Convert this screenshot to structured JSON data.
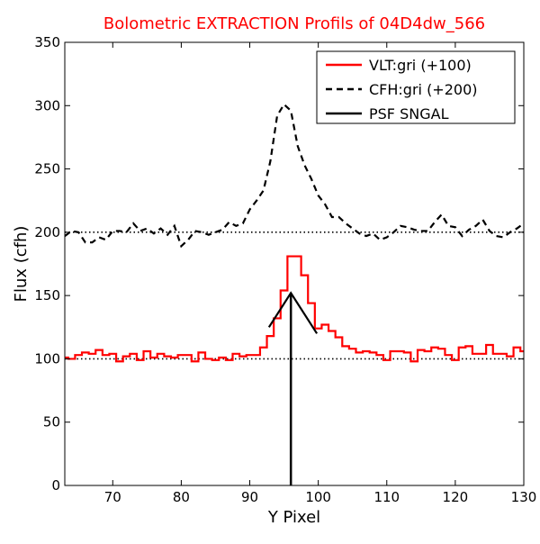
{
  "chart_data": {
    "type": "line",
    "title": "Bolometric EXTRACTION Profils of 04D4dw_566",
    "xlabel": "Y Pixel",
    "ylabel": "Flux (cfh)",
    "xlim": [
      63,
      130
    ],
    "ylim": [
      0,
      350
    ],
    "xticks": [
      70,
      80,
      90,
      100,
      110,
      120,
      130
    ],
    "yticks": [
      0,
      50,
      100,
      150,
      200,
      250,
      300,
      350
    ],
    "grid": false,
    "legend_position": "top-right",
    "reference_lines": [
      100,
      200
    ],
    "series": [
      {
        "name": "VLT:gri (+100)",
        "color": "#ff0000",
        "style": "steps",
        "x": [
          63,
          64,
          65,
          66,
          67,
          68,
          69,
          70,
          71,
          72,
          73,
          74,
          75,
          76,
          77,
          78,
          79,
          80,
          81,
          82,
          83,
          84,
          85,
          86,
          87,
          88,
          89,
          90,
          91,
          92,
          93,
          94,
          95,
          96,
          97,
          98,
          99,
          100,
          101,
          102,
          103,
          104,
          105,
          106,
          107,
          108,
          109,
          110,
          111,
          112,
          113,
          114,
          115,
          116,
          117,
          118,
          119,
          120,
          121,
          122,
          123,
          124,
          125,
          126,
          127,
          128,
          129,
          130
        ],
        "y": [
          101,
          100,
          103,
          105,
          104,
          107,
          103,
          104,
          98,
          102,
          104,
          99,
          106,
          101,
          104,
          102,
          101,
          103,
          103,
          98,
          105,
          100,
          99,
          101,
          99,
          104,
          102,
          103,
          103,
          109,
          118,
          132,
          154,
          181,
          181,
          166,
          144,
          124,
          127,
          122,
          117,
          110,
          108,
          105,
          106,
          105,
          103,
          99,
          106,
          106,
          105,
          98,
          107,
          106,
          109,
          108,
          103,
          99,
          109,
          110,
          104,
          104,
          111,
          104,
          104,
          102,
          109,
          106
        ]
      },
      {
        "name": "CFH:gri (+200)",
        "color": "#000000",
        "style": "dashed",
        "x": [
          63,
          64,
          65,
          66,
          67,
          68,
          69,
          70,
          71,
          72,
          73,
          74,
          75,
          76,
          77,
          78,
          79,
          80,
          81,
          82,
          83,
          84,
          85,
          86,
          87,
          88,
          89,
          90,
          91,
          92,
          93,
          94,
          95,
          96,
          97,
          98,
          99,
          100,
          101,
          102,
          103,
          104,
          105,
          106,
          107,
          108,
          109,
          110,
          111,
          112,
          113,
          114,
          115,
          116,
          117,
          118,
          119,
          120,
          121,
          122,
          123,
          124,
          125,
          126,
          127,
          128,
          129,
          130
        ],
        "y": [
          197,
          201,
          200,
          192,
          192,
          196,
          194,
          201,
          201,
          200,
          207,
          201,
          203,
          199,
          203,
          198,
          205,
          189,
          194,
          201,
          200,
          198,
          200,
          202,
          208,
          205,
          207,
          218,
          225,
          233,
          256,
          292,
          301,
          296,
          268,
          253,
          242,
          229,
          222,
          212,
          212,
          207,
          203,
          199,
          197,
          199,
          194,
          196,
          200,
          205,
          204,
          202,
          201,
          201,
          208,
          214,
          205,
          204,
          197,
          202,
          205,
          210,
          201,
          197,
          196,
          200,
          203,
          207
        ]
      },
      {
        "name": "PSF SNGAL",
        "color": "#000000",
        "style": "solid",
        "x": [
          92.8,
          96,
          99.8
        ],
        "y": [
          125,
          152,
          120
        ],
        "vline": {
          "x": 96,
          "y_from": 0,
          "y_to": 152
        }
      }
    ]
  }
}
